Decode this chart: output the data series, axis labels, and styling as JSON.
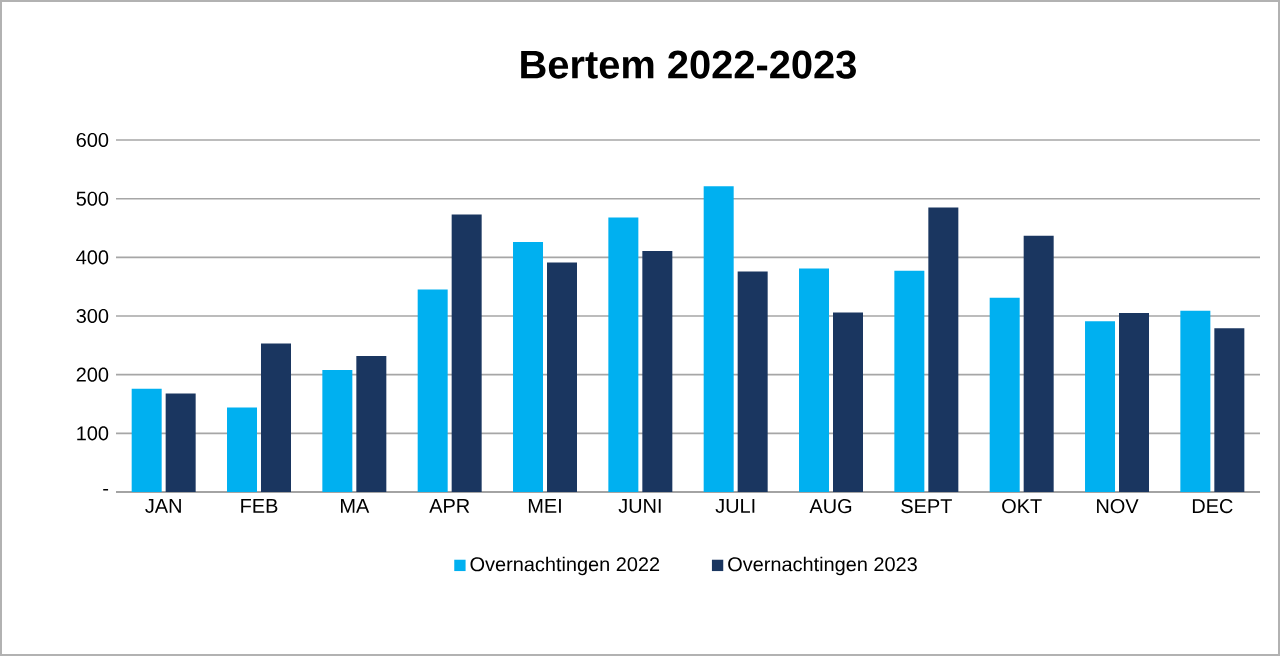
{
  "chart_data": {
    "type": "bar",
    "title": "Bertem 2022-2023",
    "categories": [
      "JAN",
      "FEB",
      "MA",
      "APR",
      "MEI",
      "JUNI",
      "JULI",
      "AUG",
      "SEPT",
      "OKT",
      "NOV",
      "DEC"
    ],
    "series": [
      {
        "name": "Overnachtingen 2022",
        "color": "#00b0f0",
        "values": [
          176,
          144,
          208,
          345,
          426,
          468,
          521,
          381,
          377,
          331,
          291,
          309
        ]
      },
      {
        "name": "Overnachtingen 2023",
        "color": "#1a3660",
        "values": [
          168,
          253,
          232,
          473,
          391,
          411,
          376,
          306,
          485,
          437,
          305,
          279
        ]
      }
    ],
    "ylim": [
      0,
      600
    ],
    "yticks": [
      {
        "value": 0,
        "label": "-"
      },
      100,
      200,
      300,
      400,
      500,
      600
    ],
    "grid": "y",
    "legend": "bottom"
  }
}
